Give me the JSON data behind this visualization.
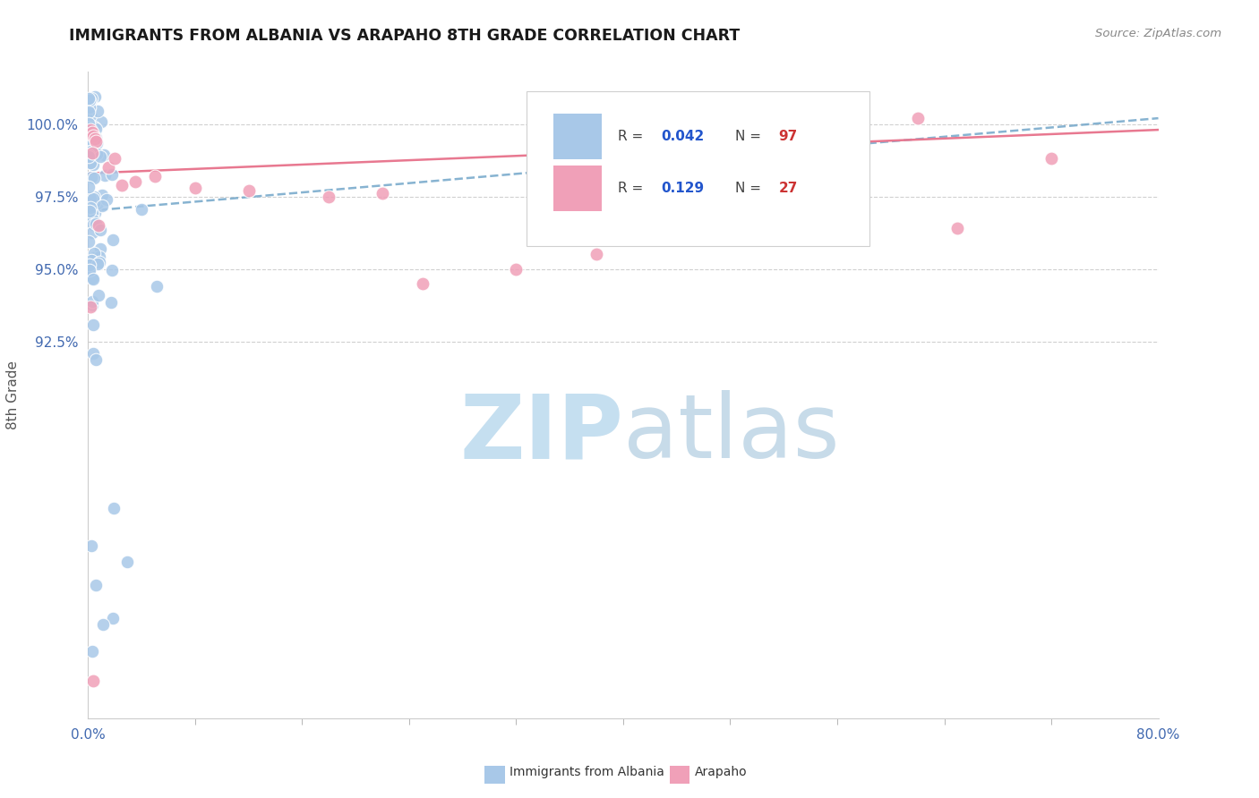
{
  "title": "IMMIGRANTS FROM ALBANIA VS ARAPAHO 8TH GRADE CORRELATION CHART",
  "source_text": "Source: ZipAtlas.com",
  "ylabel": "8th Grade",
  "x_min": 0.0,
  "x_max": 0.8,
  "y_min": 0.795,
  "y_max": 1.018,
  "y_tick_values": [
    0.925,
    0.95,
    0.975,
    1.0
  ],
  "legend_r1": "0.042",
  "legend_n1": "97",
  "legend_r2": "0.129",
  "legend_n2": "27",
  "legend_label1": "Immigrants from Albania",
  "legend_label2": "Arapaho",
  "color_blue": "#a8c8e8",
  "color_pink": "#f0a0b8",
  "color_trend_blue": "#7aabcc",
  "color_trend_pink": "#e87890",
  "color_axis_text": "#4169b0",
  "color_ylabel": "#555555",
  "color_grid": "#d0d0d0",
  "watermark_zip_color": "#c5dff0",
  "watermark_atlas_color": "#b0cce0",
  "blue_trend_x0": 0.0,
  "blue_trend_x1": 0.8,
  "blue_trend_y0": 0.97,
  "blue_trend_y1": 1.002,
  "pink_trend_x0": 0.0,
  "pink_trend_x1": 0.8,
  "pink_trend_y0": 0.983,
  "pink_trend_y1": 0.998
}
